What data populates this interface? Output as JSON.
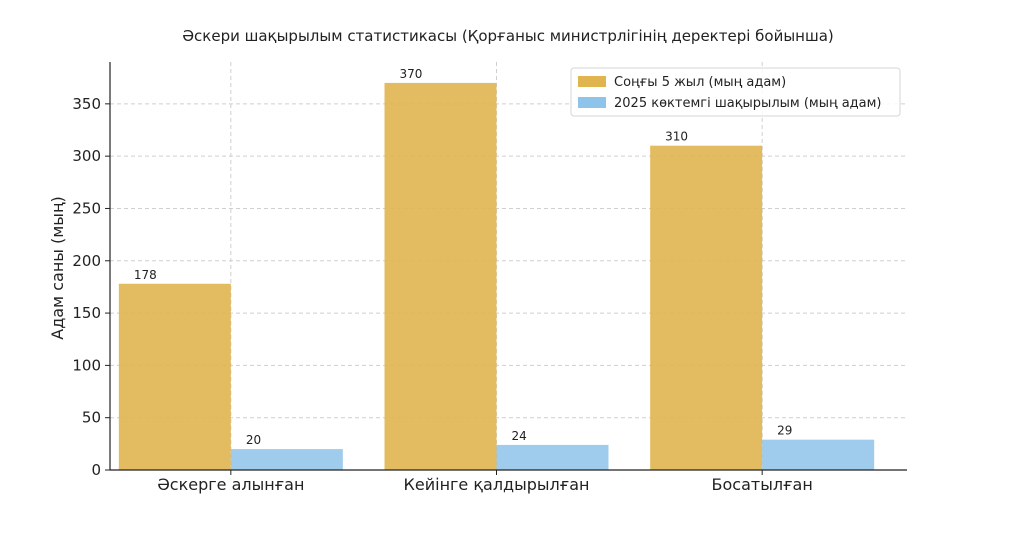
{
  "chart_data": {
    "type": "bar",
    "title": "Әскери шақырылым статистикасы (Қорғаныс министрлігінің деректері бойынша)",
    "xlabel": "",
    "ylabel": "Адам саны (мың)",
    "ylim": [
      0,
      390
    ],
    "yticks": [
      0,
      50,
      100,
      150,
      200,
      250,
      300,
      350
    ],
    "categories": [
      "Әскерге алынған",
      "Кейінге қалдырылған",
      "Босатылған"
    ],
    "series": [
      {
        "name": "Соңғы 5 жыл (мың адам)",
        "values": [
          178,
          370,
          310
        ],
        "color": "#E0B44F"
      },
      {
        "name": "2025 көктемгі шақырылым (мың адам)",
        "values": [
          20,
          24,
          29
        ],
        "color": "#8EC3EA"
      }
    ],
    "grid": true,
    "legend_position": "top-right"
  }
}
